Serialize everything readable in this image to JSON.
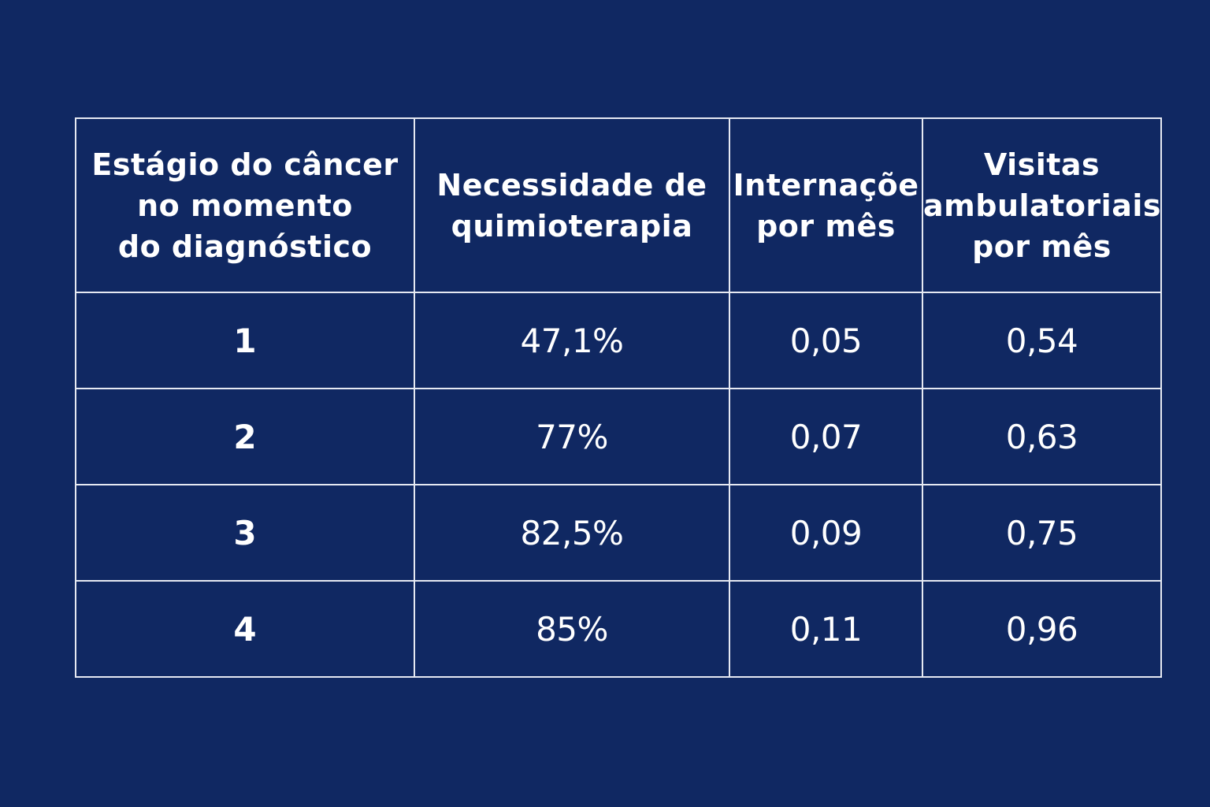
{
  "colors": {
    "background": "#102862",
    "grid_lines": "#e6e9f2",
    "text": "#ffffff"
  },
  "table": {
    "headers": [
      {
        "lines": [
          "Estágio do câncer",
          "no momento",
          "do diagnóstico"
        ]
      },
      {
        "lines": [
          "Necessidade de",
          "quimioterapia"
        ]
      },
      {
        "lines": [
          "Internaçõe",
          "por mês"
        ]
      },
      {
        "lines": [
          "Visitas",
          "ambulatoriais",
          "por mês"
        ]
      }
    ],
    "rows": [
      {
        "stage": "1",
        "chemo": "47,1%",
        "hosp": "0,05",
        "visits": "0,54"
      },
      {
        "stage": "2",
        "chemo": "77%",
        "hosp": "0,07",
        "visits": "0,63"
      },
      {
        "stage": "3",
        "chemo": "82,5%",
        "hosp": "0,09",
        "visits": "0,75"
      },
      {
        "stage": "4",
        "chemo": "85%",
        "hosp": "0,11",
        "visits": "0,96"
      }
    ]
  },
  "chart_data": {
    "type": "table",
    "columns": [
      "Estágio do câncer no momento do diagnóstico",
      "Necessidade de quimioterapia",
      "Internaçõe por mês",
      "Visitas ambulatoriais por mês"
    ],
    "rows": [
      [
        "1",
        "47,1%",
        "0,05",
        "0,54"
      ],
      [
        "2",
        "77%",
        "0,07",
        "0,63"
      ],
      [
        "3",
        "82,5%",
        "0,09",
        "0,75"
      ],
      [
        "4",
        "85%",
        "0,11",
        "0,96"
      ]
    ]
  }
}
